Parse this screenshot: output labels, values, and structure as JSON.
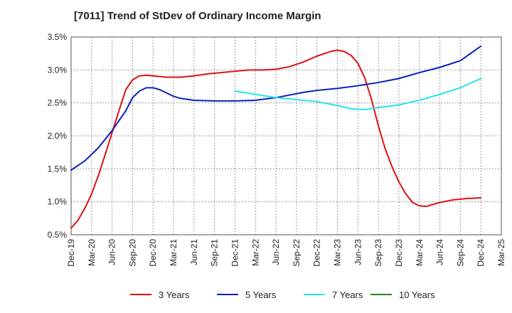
{
  "chart_data": {
    "type": "line",
    "title": "[7011]  Trend of StDev of Ordinary Income Margin",
    "xlabel": "",
    "ylabel": "",
    "x_ticks": [
      "Dec-19",
      "Mar-20",
      "Jun-20",
      "Sep-20",
      "Dec-20",
      "Mar-21",
      "Jun-21",
      "Sep-21",
      "Dec-21",
      "Mar-22",
      "Jun-22",
      "Sep-22",
      "Dec-22",
      "Mar-23",
      "Jun-23",
      "Sep-23",
      "Dec-23",
      "Mar-24",
      "Jun-24",
      "Sep-24",
      "Dec-24",
      "Mar-25"
    ],
    "y_ticks": [
      "0.5%",
      "1.0%",
      "1.5%",
      "2.0%",
      "2.5%",
      "3.0%",
      "3.5%"
    ],
    "ylim": [
      0.5,
      3.5
    ],
    "grid": true,
    "legend_position": "bottom",
    "series": [
      {
        "name": "3 Years",
        "color": "#dd1111",
        "points": [
          [
            "Dec-19",
            0.6
          ],
          [
            "Jan-20",
            0.72
          ],
          [
            "Feb-20",
            0.9
          ],
          [
            "Mar-20",
            1.12
          ],
          [
            "Apr-20",
            1.4
          ],
          [
            "May-20",
            1.72
          ],
          [
            "Jun-20",
            2.05
          ],
          [
            "Jul-20",
            2.38
          ],
          [
            "Aug-20",
            2.7
          ],
          [
            "Sep-20",
            2.85
          ],
          [
            "Oct-20",
            2.91
          ],
          [
            "Nov-20",
            2.92
          ],
          [
            "Dec-20",
            2.91
          ],
          [
            "Feb-21",
            2.89
          ],
          [
            "Apr-21",
            2.89
          ],
          [
            "Jun-21",
            2.91
          ],
          [
            "Aug-21",
            2.94
          ],
          [
            "Oct-21",
            2.96
          ],
          [
            "Dec-21",
            2.98
          ],
          [
            "Feb-22",
            3.0
          ],
          [
            "Apr-22",
            3.0
          ],
          [
            "Jun-22",
            3.01
          ],
          [
            "Aug-22",
            3.05
          ],
          [
            "Oct-22",
            3.12
          ],
          [
            "Dec-22",
            3.21
          ],
          [
            "Feb-23",
            3.28
          ],
          [
            "Mar-23",
            3.3
          ],
          [
            "Apr-23",
            3.28
          ],
          [
            "May-23",
            3.22
          ],
          [
            "Jun-23",
            3.1
          ],
          [
            "Jul-23",
            2.88
          ],
          [
            "Aug-23",
            2.55
          ],
          [
            "Sep-23",
            2.15
          ],
          [
            "Oct-23",
            1.8
          ],
          [
            "Nov-23",
            1.53
          ],
          [
            "Dec-23",
            1.3
          ],
          [
            "Jan-24",
            1.12
          ],
          [
            "Feb-24",
            0.99
          ],
          [
            "Mar-24",
            0.94
          ],
          [
            "Apr-24",
            0.93
          ],
          [
            "May-24",
            0.96
          ],
          [
            "Jun-24",
            0.99
          ],
          [
            "Aug-24",
            1.03
          ],
          [
            "Oct-24",
            1.05
          ],
          [
            "Dec-24",
            1.06
          ]
        ]
      },
      {
        "name": "5 Years",
        "color": "#0a1fbf",
        "points": [
          [
            "Dec-19",
            1.48
          ],
          [
            "Feb-20",
            1.62
          ],
          [
            "Apr-20",
            1.82
          ],
          [
            "Jun-20",
            2.08
          ],
          [
            "Aug-20",
            2.38
          ],
          [
            "Sep-20",
            2.58
          ],
          [
            "Oct-20",
            2.68
          ],
          [
            "Nov-20",
            2.73
          ],
          [
            "Dec-20",
            2.73
          ],
          [
            "Jan-21",
            2.7
          ],
          [
            "Feb-21",
            2.65
          ],
          [
            "Mar-21",
            2.6
          ],
          [
            "Apr-21",
            2.57
          ],
          [
            "Jun-21",
            2.54
          ],
          [
            "Sep-21",
            2.53
          ],
          [
            "Dec-21",
            2.53
          ],
          [
            "Mar-22",
            2.54
          ],
          [
            "Jun-22",
            2.58
          ],
          [
            "Aug-22",
            2.62
          ],
          [
            "Oct-22",
            2.66
          ],
          [
            "Dec-22",
            2.69
          ],
          [
            "Mar-23",
            2.72
          ],
          [
            "Jun-23",
            2.76
          ],
          [
            "Sep-23",
            2.81
          ],
          [
            "Dec-23",
            2.87
          ],
          [
            "Mar-24",
            2.96
          ],
          [
            "Jun-24",
            3.04
          ],
          [
            "Sep-24",
            3.14
          ],
          [
            "Dec-24",
            3.36
          ]
        ]
      },
      {
        "name": "7 Years",
        "color": "#22e5ee",
        "points": [
          [
            "Dec-21",
            2.68
          ],
          [
            "Mar-22",
            2.63
          ],
          [
            "Jun-22",
            2.58
          ],
          [
            "Sep-22",
            2.55
          ],
          [
            "Dec-22",
            2.52
          ],
          [
            "Mar-23",
            2.46
          ],
          [
            "May-23",
            2.41
          ],
          [
            "Jul-23",
            2.4
          ],
          [
            "Sep-23",
            2.43
          ],
          [
            "Dec-23",
            2.47
          ],
          [
            "Mar-24",
            2.54
          ],
          [
            "Jun-24",
            2.63
          ],
          [
            "Sep-24",
            2.73
          ],
          [
            "Dec-24",
            2.87
          ]
        ]
      },
      {
        "name": "10 Years",
        "color": "#1e8a1e",
        "points": []
      }
    ]
  }
}
